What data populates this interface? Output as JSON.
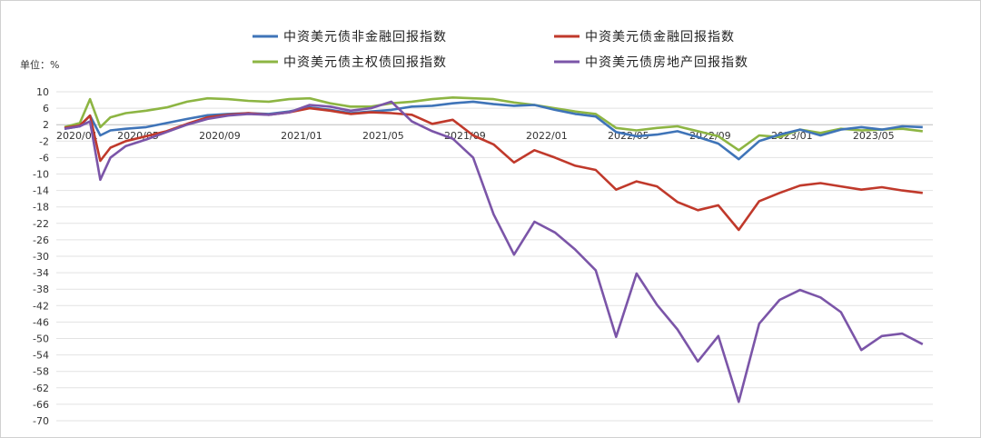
{
  "chart_data": {
    "type": "line",
    "unit_label": "单位：%",
    "x_tick_labels": [
      "2020/01",
      "2020/05",
      "2020/09",
      "2021/01",
      "2021/05",
      "2021/09",
      "2022/01",
      "2022/05",
      "2022/09",
      "2023/01",
      "2023/05"
    ],
    "x_range": [
      "2020/01",
      "2023/07"
    ],
    "y_range": [
      -70,
      10
    ],
    "y_ticks": [
      10,
      6,
      2,
      -2,
      -6,
      -10,
      -14,
      -18,
      -22,
      -26,
      -30,
      -34,
      -38,
      -42,
      -46,
      -50,
      -54,
      -58,
      -62,
      -66,
      -70
    ],
    "grid": "horizontal",
    "legend_position": "top",
    "series": [
      {
        "name": "中资美元债非金融回报指数",
        "color": "#3f74b8",
        "points": [
          [
            "2020/01",
            1.0
          ],
          [
            "2020/02",
            1.6
          ],
          [
            "2020/02",
            4.2
          ],
          [
            "2020/03",
            -0.6
          ],
          [
            "2020/03",
            0.6
          ],
          [
            "2020/04",
            1.0
          ],
          [
            "2020/05",
            1.4
          ],
          [
            "2020/06",
            2.4
          ],
          [
            "2020/07",
            3.4
          ],
          [
            "2020/08",
            4.3
          ],
          [
            "2020/09",
            4.6
          ],
          [
            "2020/10",
            4.8
          ],
          [
            "2020/11",
            4.6
          ],
          [
            "2020/12",
            5.2
          ],
          [
            "2021/01",
            6.2
          ],
          [
            "2021/02",
            5.6
          ],
          [
            "2021/03",
            4.8
          ],
          [
            "2021/04",
            5.2
          ],
          [
            "2021/05",
            5.6
          ],
          [
            "2021/06",
            6.4
          ],
          [
            "2021/07",
            6.6
          ],
          [
            "2021/08",
            7.2
          ],
          [
            "2021/09",
            7.6
          ],
          [
            "2021/10",
            7.0
          ],
          [
            "2021/11",
            6.6
          ],
          [
            "2021/12",
            6.8
          ],
          [
            "2022/01",
            5.6
          ],
          [
            "2022/02",
            4.6
          ],
          [
            "2022/03",
            4.0
          ],
          [
            "2022/04",
            0.2
          ],
          [
            "2022/05",
            -0.8
          ],
          [
            "2022/06",
            -0.4
          ],
          [
            "2022/07",
            0.4
          ],
          [
            "2022/08",
            -1.0
          ],
          [
            "2022/09",
            -2.6
          ],
          [
            "2022/10",
            -6.4
          ],
          [
            "2022/11",
            -2.0
          ],
          [
            "2022/12",
            -0.4
          ],
          [
            "2023/01",
            0.8
          ],
          [
            "2023/02",
            -0.6
          ],
          [
            "2023/03",
            0.8
          ],
          [
            "2023/04",
            1.4
          ],
          [
            "2023/05",
            0.8
          ],
          [
            "2023/06",
            1.6
          ],
          [
            "2023/07",
            1.4
          ]
        ]
      },
      {
        "name": "中资美元债金融回报指数",
        "color": "#c0392b",
        "points": [
          [
            "2020/01",
            1.2
          ],
          [
            "2020/02",
            1.8
          ],
          [
            "2020/02",
            4.2
          ],
          [
            "2020/03",
            -6.8
          ],
          [
            "2020/03",
            -3.6
          ],
          [
            "2020/04",
            -2.0
          ],
          [
            "2020/05",
            -0.8
          ],
          [
            "2020/06",
            0.4
          ],
          [
            "2020/07",
            2.2
          ],
          [
            "2020/08",
            3.8
          ],
          [
            "2020/09",
            4.4
          ],
          [
            "2020/10",
            4.8
          ],
          [
            "2020/11",
            4.4
          ],
          [
            "2020/12",
            5.0
          ],
          [
            "2021/01",
            6.0
          ],
          [
            "2021/02",
            5.4
          ],
          [
            "2021/03",
            4.6
          ],
          [
            "2021/04",
            5.0
          ],
          [
            "2021/05",
            4.8
          ],
          [
            "2021/06",
            4.4
          ],
          [
            "2021/07",
            2.2
          ],
          [
            "2021/08",
            3.2
          ],
          [
            "2021/09",
            -0.6
          ],
          [
            "2021/10",
            -2.8
          ],
          [
            "2021/11",
            -7.2
          ],
          [
            "2021/12",
            -4.2
          ],
          [
            "2022/01",
            -6.0
          ],
          [
            "2022/02",
            -8.0
          ],
          [
            "2022/03",
            -9.0
          ],
          [
            "2022/04",
            -13.8
          ],
          [
            "2022/05",
            -11.8
          ],
          [
            "2022/06",
            -13.0
          ],
          [
            "2022/07",
            -16.8
          ],
          [
            "2022/08",
            -18.8
          ],
          [
            "2022/09",
            -17.6
          ],
          [
            "2022/10",
            -23.6
          ],
          [
            "2022/11",
            -16.6
          ],
          [
            "2022/12",
            -14.6
          ],
          [
            "2023/01",
            -12.8
          ],
          [
            "2023/02",
            -12.2
          ],
          [
            "2023/03",
            -13.0
          ],
          [
            "2023/04",
            -13.8
          ],
          [
            "2023/05",
            -13.2
          ],
          [
            "2023/06",
            -14.0
          ],
          [
            "2023/07",
            -14.6
          ]
        ]
      },
      {
        "name": "中资美元债主权债回报指数",
        "color": "#8db543",
        "points": [
          [
            "2020/01",
            1.4
          ],
          [
            "2020/02",
            2.4
          ],
          [
            "2020/02",
            8.2
          ],
          [
            "2020/03",
            1.4
          ],
          [
            "2020/03",
            3.8
          ],
          [
            "2020/04",
            4.8
          ],
          [
            "2020/05",
            5.4
          ],
          [
            "2020/06",
            6.2
          ],
          [
            "2020/07",
            7.6
          ],
          [
            "2020/08",
            8.4
          ],
          [
            "2020/09",
            8.2
          ],
          [
            "2020/10",
            7.8
          ],
          [
            "2020/11",
            7.6
          ],
          [
            "2020/12",
            8.2
          ],
          [
            "2021/01",
            8.4
          ],
          [
            "2021/02",
            7.2
          ],
          [
            "2021/03",
            6.4
          ],
          [
            "2021/04",
            6.4
          ],
          [
            "2021/05",
            7.2
          ],
          [
            "2021/06",
            7.6
          ],
          [
            "2021/07",
            8.2
          ],
          [
            "2021/08",
            8.6
          ],
          [
            "2021/09",
            8.4
          ],
          [
            "2021/10",
            8.2
          ],
          [
            "2021/11",
            7.4
          ],
          [
            "2021/12",
            6.8
          ],
          [
            "2022/01",
            6.0
          ],
          [
            "2022/02",
            5.2
          ],
          [
            "2022/03",
            4.6
          ],
          [
            "2022/04",
            1.2
          ],
          [
            "2022/05",
            0.6
          ],
          [
            "2022/06",
            1.2
          ],
          [
            "2022/07",
            1.6
          ],
          [
            "2022/08",
            0.4
          ],
          [
            "2022/09",
            -0.8
          ],
          [
            "2022/10",
            -4.2
          ],
          [
            "2022/11",
            -0.6
          ],
          [
            "2022/12",
            -1.0
          ],
          [
            "2023/01",
            0.8
          ],
          [
            "2023/02",
            0.0
          ],
          [
            "2023/03",
            1.0
          ],
          [
            "2023/04",
            0.6
          ],
          [
            "2023/05",
            0.8
          ],
          [
            "2023/06",
            1.0
          ],
          [
            "2023/07",
            0.4
          ]
        ]
      },
      {
        "name": "中资美元债房地产回报指数",
        "color": "#7b55a8",
        "points": [
          [
            "2020/01",
            1.0
          ],
          [
            "2020/02",
            1.6
          ],
          [
            "2020/02",
            2.8
          ],
          [
            "2020/03",
            -11.4
          ],
          [
            "2020/03",
            -6.0
          ],
          [
            "2020/04",
            -3.2
          ],
          [
            "2020/05",
            -1.6
          ],
          [
            "2020/06",
            0.2
          ],
          [
            "2020/07",
            2.0
          ],
          [
            "2020/08",
            3.4
          ],
          [
            "2020/09",
            4.2
          ],
          [
            "2020/10",
            4.6
          ],
          [
            "2020/11",
            4.4
          ],
          [
            "2020/12",
            5.0
          ],
          [
            "2021/01",
            6.8
          ],
          [
            "2021/02",
            6.4
          ],
          [
            "2021/03",
            5.4
          ],
          [
            "2021/04",
            6.0
          ],
          [
            "2021/05",
            7.6
          ],
          [
            "2021/06",
            2.8
          ],
          [
            "2021/07",
            0.4
          ],
          [
            "2021/08",
            -1.4
          ],
          [
            "2021/09",
            -6.0
          ],
          [
            "2021/10",
            -19.8
          ],
          [
            "2021/11",
            -29.6
          ],
          [
            "2021/12",
            -21.6
          ],
          [
            "2022/01",
            -24.2
          ],
          [
            "2022/02",
            -28.4
          ],
          [
            "2022/03",
            -33.4
          ],
          [
            "2022/04",
            -49.6
          ],
          [
            "2022/05",
            -34.2
          ],
          [
            "2022/06",
            -41.8
          ],
          [
            "2022/07",
            -47.8
          ],
          [
            "2022/08",
            -55.6
          ],
          [
            "2022/09",
            -49.4
          ],
          [
            "2022/10",
            -65.4
          ],
          [
            "2022/11",
            -46.4
          ],
          [
            "2022/12",
            -40.6
          ],
          [
            "2023/01",
            -38.2
          ],
          [
            "2023/02",
            -40.0
          ],
          [
            "2023/03",
            -43.6
          ],
          [
            "2023/04",
            -52.8
          ],
          [
            "2023/05",
            -49.4
          ],
          [
            "2023/06",
            -48.8
          ],
          [
            "2023/07",
            -51.4
          ]
        ]
      }
    ]
  }
}
